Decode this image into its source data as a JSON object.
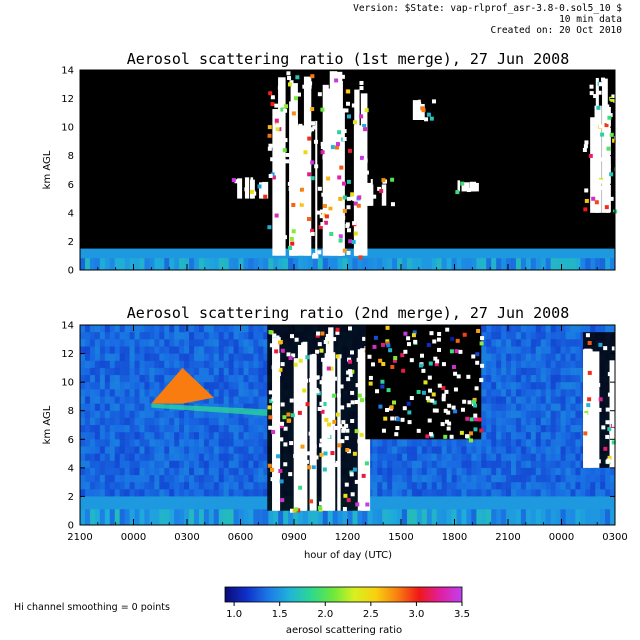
{
  "header": {
    "version": "Version: $State: vap-rlprof_asr-3.8-0.sol5_10 $",
    "resolution": "10 min data",
    "created": "Created on: 20 Oct 2010"
  },
  "footnote": "Hi channel smoothing = 0 points",
  "colors": {
    "background_black": "#000000",
    "saturated_white": "#ffffff",
    "colormap": [
      "#0a0a78",
      "#1030c8",
      "#1c78e8",
      "#20b4d8",
      "#2cd890",
      "#6ae83c",
      "#d8f020",
      "#f8d010",
      "#f88010",
      "#f01818",
      "#e020a0",
      "#c040f0"
    ]
  },
  "chart_data": [
    {
      "type": "heatmap",
      "title": "Aerosol scattering ratio (1st merge), 27 Jun 2008",
      "ylabel": "km AGL",
      "ylim": [
        0,
        14
      ],
      "yticks": [
        "0",
        "2",
        "4",
        "6",
        "8",
        "10",
        "12",
        "14"
      ],
      "xlim_hours": [
        -3,
        27
      ],
      "value_range": [
        1.0,
        3.5
      ],
      "features": [
        {
          "kind": "boundary-layer",
          "value": 1.5,
          "top_km": 1.5
        },
        {
          "kind": "cloud",
          "start_hour": 7.5,
          "end_hour": 13.0,
          "bottom_km": 1.0,
          "top_km": 14
        },
        {
          "kind": "cloud",
          "start_hour": 5.5,
          "end_hour": 7.5,
          "bottom_km": 5.0,
          "top_km": 6.5
        },
        {
          "kind": "cloud",
          "start_hour": 13.0,
          "end_hour": 14.5,
          "bottom_km": 4.5,
          "top_km": 6.5
        },
        {
          "kind": "cloud",
          "start_hour": 15.5,
          "end_hour": 16.8,
          "bottom_km": 10.5,
          "top_km": 12.0
        },
        {
          "kind": "cloud",
          "start_hour": 17.8,
          "end_hour": 19.2,
          "bottom_km": 5.5,
          "top_km": 6.3
        },
        {
          "kind": "cloud",
          "start_hour": 25.2,
          "end_hour": 27.0,
          "bottom_km": 4.0,
          "top_km": 13.5
        }
      ]
    },
    {
      "type": "heatmap",
      "title": "Aerosol scattering ratio (2nd merge), 27 Jun 2008",
      "ylabel": "km AGL",
      "xlabel": "hour of day (UTC)",
      "ylim": [
        0,
        14
      ],
      "yticks": [
        "0",
        "2",
        "4",
        "6",
        "8",
        "10",
        "12",
        "14"
      ],
      "xticks": [
        "2100",
        "0000",
        "0300",
        "0600",
        "0900",
        "1200",
        "1500",
        "1800",
        "2100",
        "0000",
        "0300"
      ],
      "xlim_hours": [
        -3,
        27
      ],
      "value_range": [
        1.0,
        3.5
      ],
      "features": [
        {
          "kind": "background",
          "value": 1.3
        },
        {
          "kind": "boundary-layer",
          "value": 1.5,
          "top_km": 2.0
        },
        {
          "kind": "aerosol-layer",
          "start_hour": 1.0,
          "end_hour": 4.5,
          "bottom_km": 8.5,
          "top_km": 11.0,
          "value": 2.8
        },
        {
          "kind": "cloud",
          "start_hour": 7.5,
          "end_hour": 13.0,
          "bottom_km": 1.0,
          "top_km": 14
        },
        {
          "kind": "missing",
          "start_hour": 13.0,
          "end_hour": 19.5,
          "bottom_km": 6.0,
          "top_km": 14
        },
        {
          "kind": "cloud",
          "start_hour": 25.2,
          "end_hour": 27.0,
          "bottom_km": 4.0,
          "top_km": 13.5
        }
      ]
    }
  ],
  "colorbar": {
    "label": "aerosol scattering ratio",
    "ticks": [
      "1.0",
      "1.5",
      "2.0",
      "2.5",
      "3.0",
      "3.5"
    ],
    "range": [
      0.9,
      3.5
    ]
  }
}
